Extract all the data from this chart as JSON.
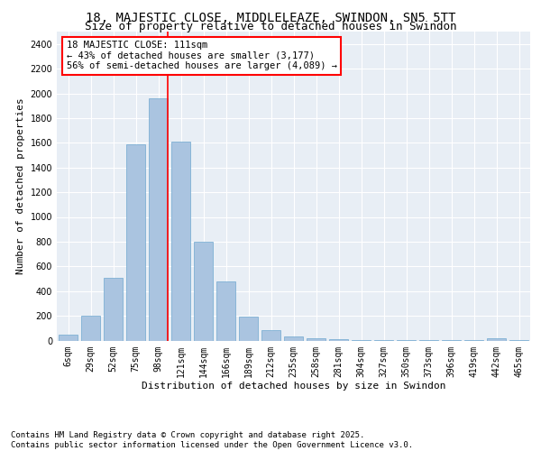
{
  "title1": "18, MAJESTIC CLOSE, MIDDLELEAZE, SWINDON, SN5 5TT",
  "title2": "Size of property relative to detached houses in Swindon",
  "xlabel": "Distribution of detached houses by size in Swindon",
  "ylabel": "Number of detached properties",
  "categories": [
    "6sqm",
    "29sqm",
    "52sqm",
    "75sqm",
    "98sqm",
    "121sqm",
    "144sqm",
    "166sqm",
    "189sqm",
    "212sqm",
    "235sqm",
    "258sqm",
    "281sqm",
    "304sqm",
    "327sqm",
    "350sqm",
    "373sqm",
    "396sqm",
    "419sqm",
    "442sqm",
    "465sqm"
  ],
  "values": [
    50,
    200,
    510,
    1590,
    1960,
    1610,
    800,
    480,
    195,
    85,
    35,
    20,
    10,
    5,
    5,
    3,
    3,
    2,
    2,
    20,
    2
  ],
  "bar_color": "#aac4e0",
  "bar_edge_color": "#6fa8d0",
  "vline_color": "red",
  "vline_x": 4.43,
  "annotation_text": "18 MAJESTIC CLOSE: 111sqm\n← 43% of detached houses are smaller (3,177)\n56% of semi-detached houses are larger (4,089) →",
  "annotation_box_color": "white",
  "annotation_box_edge_color": "red",
  "ylim": [
    0,
    2500
  ],
  "yticks": [
    0,
    200,
    400,
    600,
    800,
    1000,
    1200,
    1400,
    1600,
    1800,
    2000,
    2200,
    2400
  ],
  "background_color": "#e8eef5",
  "footer_text": "Contains HM Land Registry data © Crown copyright and database right 2025.\nContains public sector information licensed under the Open Government Licence v3.0.",
  "title1_fontsize": 10,
  "title2_fontsize": 9,
  "xlabel_fontsize": 8,
  "ylabel_fontsize": 8,
  "tick_fontsize": 7,
  "annotation_fontsize": 7.5,
  "footer_fontsize": 6.5
}
